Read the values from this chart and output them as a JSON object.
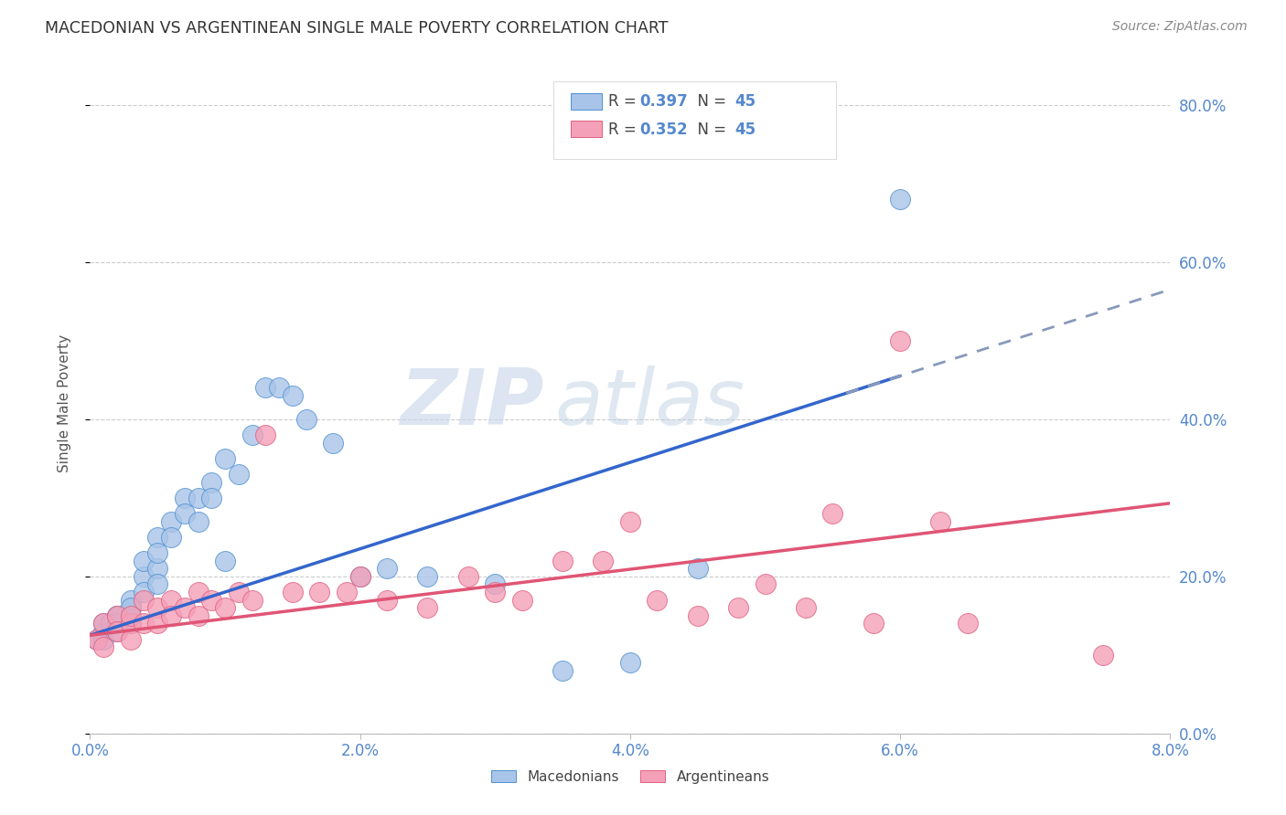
{
  "title": "MACEDONIAN VS ARGENTINEAN SINGLE MALE POVERTY CORRELATION CHART",
  "source": "Source: ZipAtlas.com",
  "ylabel": "Single Male Poverty",
  "xlim": [
    0.0,
    0.08
  ],
  "ylim": [
    0.0,
    0.84
  ],
  "xticks": [
    0.0,
    0.02,
    0.04,
    0.06,
    0.08
  ],
  "yticks": [
    0.0,
    0.2,
    0.4,
    0.6,
    0.8
  ],
  "ytick_labels_right": [
    "0.0%",
    "20.0%",
    "40.0%",
    "60.0%",
    "80.0%"
  ],
  "xtick_labels": [
    "0.0%",
    "2.0%",
    "4.0%",
    "6.0%",
    "8.0%"
  ],
  "mac_R": "0.397",
  "mac_N": "45",
  "arg_R": "0.352",
  "arg_N": "45",
  "mac_color": "#a8c4e8",
  "arg_color": "#f4a0b8",
  "mac_edge_color": "#5090d0",
  "arg_edge_color": "#e06080",
  "mac_line_color": "#3366cc",
  "arg_line_color": "#e05575",
  "watermark_zip": "ZIP",
  "watermark_atlas": "atlas",
  "mac_x": [
    0.0005,
    0.001,
    0.001,
    0.001,
    0.0015,
    0.002,
    0.002,
    0.002,
    0.002,
    0.003,
    0.003,
    0.003,
    0.003,
    0.004,
    0.004,
    0.004,
    0.005,
    0.005,
    0.005,
    0.005,
    0.006,
    0.006,
    0.007,
    0.007,
    0.008,
    0.008,
    0.009,
    0.009,
    0.01,
    0.01,
    0.011,
    0.012,
    0.013,
    0.014,
    0.015,
    0.016,
    0.018,
    0.02,
    0.022,
    0.025,
    0.03,
    0.035,
    0.04,
    0.045,
    0.06
  ],
  "mac_y": [
    0.12,
    0.13,
    0.14,
    0.12,
    0.14,
    0.15,
    0.14,
    0.15,
    0.13,
    0.16,
    0.17,
    0.14,
    0.16,
    0.2,
    0.18,
    0.22,
    0.21,
    0.25,
    0.23,
    0.19,
    0.27,
    0.25,
    0.3,
    0.28,
    0.3,
    0.27,
    0.32,
    0.3,
    0.35,
    0.22,
    0.33,
    0.38,
    0.44,
    0.44,
    0.43,
    0.4,
    0.37,
    0.2,
    0.21,
    0.2,
    0.19,
    0.08,
    0.09,
    0.21,
    0.68
  ],
  "arg_x": [
    0.0005,
    0.001,
    0.001,
    0.002,
    0.002,
    0.003,
    0.003,
    0.003,
    0.004,
    0.004,
    0.005,
    0.005,
    0.006,
    0.006,
    0.007,
    0.008,
    0.008,
    0.009,
    0.01,
    0.011,
    0.012,
    0.013,
    0.015,
    0.017,
    0.019,
    0.02,
    0.022,
    0.025,
    0.028,
    0.03,
    0.032,
    0.035,
    0.038,
    0.04,
    0.042,
    0.045,
    0.048,
    0.05,
    0.053,
    0.055,
    0.058,
    0.06,
    0.063,
    0.065,
    0.075
  ],
  "arg_y": [
    0.12,
    0.14,
    0.11,
    0.15,
    0.13,
    0.14,
    0.15,
    0.12,
    0.17,
    0.14,
    0.16,
    0.14,
    0.17,
    0.15,
    0.16,
    0.18,
    0.15,
    0.17,
    0.16,
    0.18,
    0.17,
    0.38,
    0.18,
    0.18,
    0.18,
    0.2,
    0.17,
    0.16,
    0.2,
    0.18,
    0.17,
    0.22,
    0.22,
    0.27,
    0.17,
    0.15,
    0.16,
    0.19,
    0.16,
    0.28,
    0.14,
    0.5,
    0.27,
    0.14,
    0.1
  ]
}
